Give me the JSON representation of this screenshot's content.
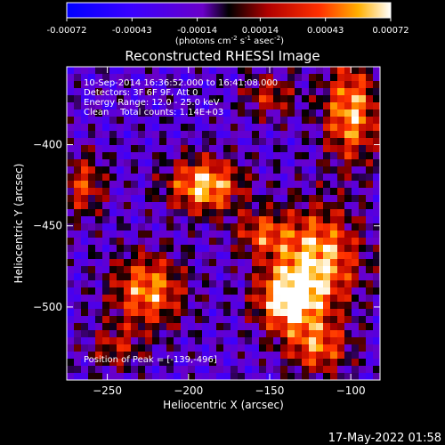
{
  "chart_data": {
    "type": "heatmap",
    "title": "Reconstructed RHESSI Image",
    "xlabel": "Heliocentric X (arcsec)",
    "ylabel": "Heliocentric Y (arcsec)",
    "xlim": [
      -275,
      -82
    ],
    "ylim": [
      -545,
      -352
    ],
    "x_ticks": [
      -250,
      -200,
      -150,
      -100
    ],
    "y_ticks": [
      -400,
      -450,
      -500
    ],
    "colorbar": {
      "min": -0.00072,
      "max": 0.00072,
      "tick_values": [
        -0.00072,
        -0.00043,
        -0.00014,
        0.00014,
        0.00043,
        0.00072
      ],
      "tick_labels": [
        "-0.00072",
        "-0.00043",
        "-0.00014",
        "0.00014",
        "0.00043",
        "0.00072"
      ],
      "unit_parts": {
        "a": "(photons cm",
        "b": "-2",
        "c": " s",
        "d": "-1",
        "e": " asec",
        "f": "-2",
        "g": ")"
      }
    },
    "annotations": [
      "10-Sep-2014 16:36:52.000 to 16:41:08.000",
      "Detectors: 3F 6F 9F, Att 0",
      "Energy Range: 12.0 - 25.0 keV",
      "Clean    Total counts: 1.14E+03"
    ],
    "peak_label": "Position of Peak = [-139,-496]",
    "peak": [
      -139,
      -496
    ],
    "sources": [
      {
        "x": -190,
        "y": -425,
        "amp": 1.0,
        "sx": 16,
        "sy": 12
      },
      {
        "x": -120,
        "y": -470,
        "amp": 0.95,
        "sx": 18,
        "sy": 22
      },
      {
        "x": -139,
        "y": -496,
        "amp": 1.0,
        "sx": 14,
        "sy": 14
      },
      {
        "x": -100,
        "y": -380,
        "amp": 0.9,
        "sx": 12,
        "sy": 22
      },
      {
        "x": -225,
        "y": -490,
        "amp": 0.85,
        "sx": 16,
        "sy": 16
      },
      {
        "x": -155,
        "y": -455,
        "amp": 0.6,
        "sx": 12,
        "sy": 10
      },
      {
        "x": -265,
        "y": -425,
        "amp": 0.6,
        "sx": 10,
        "sy": 14
      },
      {
        "x": -150,
        "y": -370,
        "amp": 0.5,
        "sx": 12,
        "sy": 10
      },
      {
        "x": -245,
        "y": -525,
        "amp": 0.45,
        "sx": 12,
        "sy": 10
      },
      {
        "x": -120,
        "y": -525,
        "amp": 0.7,
        "sx": 14,
        "sy": 12
      }
    ]
  },
  "timestamp": "17-May-2022 01:58",
  "colors": {
    "background": "#000000",
    "text": "#ffffff"
  }
}
